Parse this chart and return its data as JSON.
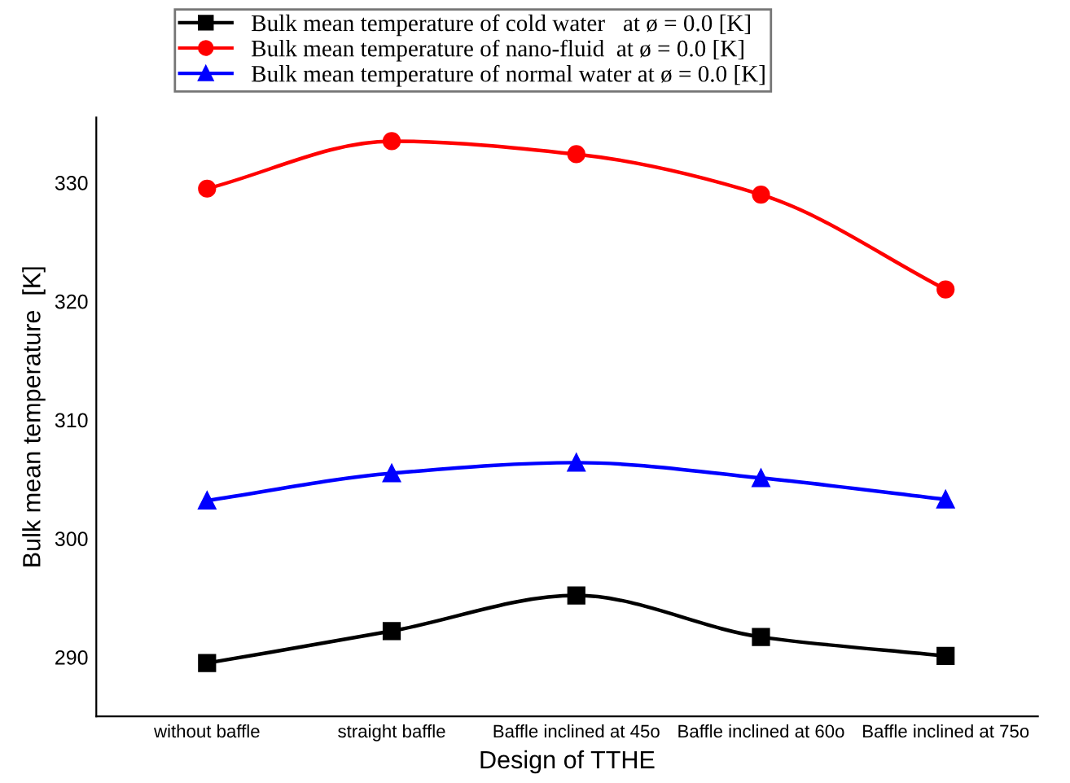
{
  "chart_data": {
    "type": "line",
    "xlabel": "Design of TTHE",
    "ylabel": "Bulk mean temperature  [K]",
    "categories": [
      "without baffle",
      "straight baffle",
      "Baffle inclined at 45o",
      "Baffle inclined at 60o",
      "Baffle inclined at 75o"
    ],
    "series": [
      {
        "name": "Bulk mean temperature of cold water   at ø = 0.0 [K]",
        "color": "#000000",
        "marker": "square",
        "values": [
          289.5,
          292.2,
          295.2,
          291.7,
          290.1
        ]
      },
      {
        "name": "Bulk mean temperature of nano-fluid  at ø = 0.0 [K]",
        "color": "#ff0000",
        "marker": "circle",
        "values": [
          329.5,
          333.5,
          332.4,
          329.0,
          321.0
        ]
      },
      {
        "name": "Bulk mean temperature of normal water at ø = 0.0 [K]",
        "color": "#0000ff",
        "marker": "triangle",
        "values": [
          303.2,
          305.5,
          306.4,
          305.1,
          303.3
        ]
      }
    ],
    "ylim": [
      285,
      335.5
    ],
    "yticks": [
      290,
      300,
      310,
      320,
      330
    ],
    "grid": false,
    "legend": "top"
  }
}
